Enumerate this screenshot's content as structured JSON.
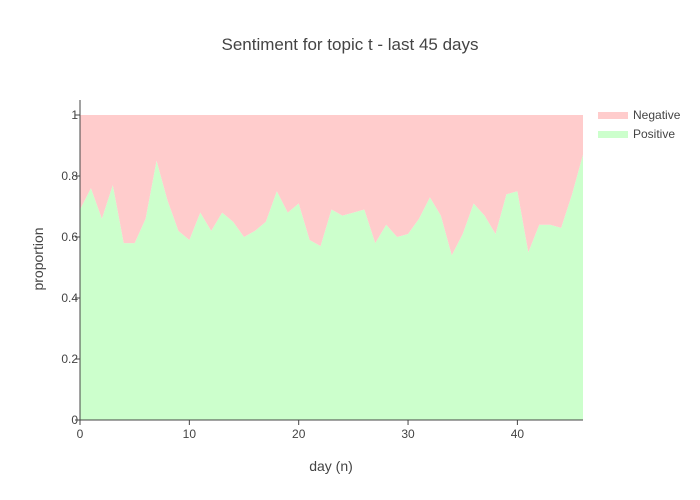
{
  "chart_data": {
    "type": "area",
    "stacked": "normalized",
    "title": "Sentiment for topic t - last 45 days",
    "xlabel": "day (n)",
    "ylabel": "proportion",
    "xlim": [
      0,
      46
    ],
    "ylim": [
      0,
      1
    ],
    "x_ticks": [
      0,
      10,
      20,
      30,
      40
    ],
    "y_ticks": [
      0,
      0.2,
      0.4,
      0.6,
      0.8,
      1
    ],
    "y_tick_labels": [
      "0",
      "0.2",
      "0.4",
      "0.6",
      "0.8",
      "1"
    ],
    "grid": false,
    "legend_position": "top-right",
    "x": [
      0,
      1,
      2,
      3,
      4,
      5,
      6,
      7,
      8,
      9,
      10,
      11,
      12,
      13,
      14,
      15,
      16,
      17,
      18,
      19,
      20,
      21,
      22,
      23,
      24,
      25,
      26,
      27,
      28,
      29,
      30,
      31,
      32,
      33,
      34,
      35,
      36,
      37,
      38,
      39,
      40,
      41,
      42,
      43,
      44,
      45,
      46
    ],
    "series": [
      {
        "name": "Positive",
        "color": "#ccffcc",
        "values": [
          0.69,
          0.76,
          0.66,
          0.77,
          0.58,
          0.58,
          0.66,
          0.85,
          0.72,
          0.62,
          0.59,
          0.68,
          0.62,
          0.68,
          0.65,
          0.6,
          0.62,
          0.65,
          0.75,
          0.68,
          0.71,
          0.59,
          0.57,
          0.69,
          0.67,
          0.68,
          0.69,
          0.58,
          0.64,
          0.6,
          0.61,
          0.66,
          0.73,
          0.67,
          0.54,
          0.61,
          0.71,
          0.67,
          0.61,
          0.74,
          0.75,
          0.55,
          0.64,
          0.64,
          0.63,
          0.74,
          0.87
        ]
      },
      {
        "name": "Negative",
        "color": "#ffcccc",
        "values": [
          0.31,
          0.24,
          0.34,
          0.23,
          0.42,
          0.42,
          0.34,
          0.15,
          0.28,
          0.38,
          0.41,
          0.32,
          0.38,
          0.32,
          0.35,
          0.4,
          0.38,
          0.35,
          0.25,
          0.32,
          0.29,
          0.41,
          0.43,
          0.31,
          0.33,
          0.32,
          0.31,
          0.42,
          0.36,
          0.4,
          0.39,
          0.34,
          0.27,
          0.33,
          0.46,
          0.39,
          0.29,
          0.33,
          0.39,
          0.26,
          0.25,
          0.45,
          0.36,
          0.36,
          0.37,
          0.26,
          0.13
        ]
      }
    ]
  }
}
